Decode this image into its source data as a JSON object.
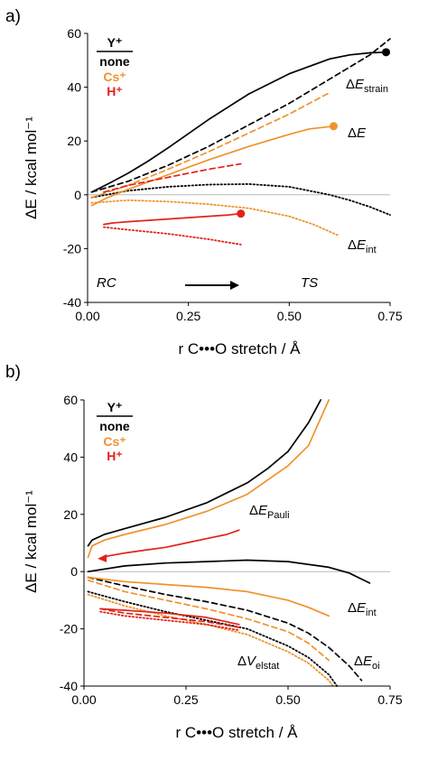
{
  "colors": {
    "none": "#000000",
    "cs": "#f0922b",
    "h": "#e2231a",
    "zero": "#bbbbbb"
  },
  "legend": {
    "title": "Y⁺",
    "items": [
      {
        "label": "none",
        "color": "#000000"
      },
      {
        "label": "Cs⁺",
        "color": "#f0922b"
      },
      {
        "label": "H⁺",
        "color": "#e2231a"
      }
    ]
  },
  "chart_data": [
    {
      "panel": "a)",
      "type": "line",
      "xlabel": "r C•••O stretch / Å",
      "ylabel": "ΔE / kcal mol⁻¹",
      "xlim": [
        0,
        0.75
      ],
      "ylim": [
        -40,
        60
      ],
      "xticks": [
        "0.00",
        "0.25",
        "0.50",
        "0.75"
      ],
      "yticks": [
        "60",
        "40",
        "20",
        "0",
        "-20",
        "-40"
      ],
      "annotations": {
        "strain": {
          "delta": "Δ",
          "E": "E",
          "sub": "strain"
        },
        "total": {
          "delta": "Δ",
          "E": "E",
          "sub": ""
        },
        "int": {
          "delta": "Δ",
          "E": "E",
          "sub": "int"
        },
        "rc": "RC",
        "ts": "TS"
      },
      "series": [
        {
          "ion": "none",
          "term": "ΔE",
          "dash": "solid",
          "endpoint": true,
          "x": [
            0.01,
            0.05,
            0.1,
            0.15,
            0.2,
            0.3,
            0.4,
            0.5,
            0.6,
            0.65,
            0.7,
            0.74
          ],
          "y": [
            1,
            4,
            8,
            12.5,
            17.5,
            28,
            37.5,
            45,
            50.5,
            52,
            52.8,
            53
          ]
        },
        {
          "ion": "none",
          "term": "ΔE_strain",
          "dash": "dashed",
          "x": [
            0.01,
            0.1,
            0.2,
            0.3,
            0.4,
            0.5,
            0.6,
            0.7,
            0.75
          ],
          "y": [
            1,
            5,
            11,
            18,
            26,
            34,
            43,
            52,
            58
          ]
        },
        {
          "ion": "none",
          "term": "ΔE_int",
          "dash": "dotted",
          "x": [
            0.01,
            0.1,
            0.2,
            0.3,
            0.4,
            0.5,
            0.6,
            0.65,
            0.7,
            0.75
          ],
          "y": [
            -1,
            1.5,
            3,
            3.8,
            4,
            3,
            0,
            -2,
            -4.5,
            -7.5
          ]
        },
        {
          "ion": "Cs⁺",
          "term": "ΔE",
          "dash": "solid",
          "endpoint": true,
          "x": [
            0.01,
            0.05,
            0.1,
            0.2,
            0.3,
            0.4,
            0.5,
            0.55,
            0.61
          ],
          "y": [
            -4,
            -1,
            2,
            7.5,
            13,
            18,
            22.5,
            24.5,
            25.5
          ]
        },
        {
          "ion": "Cs⁺",
          "term": "ΔE_strain",
          "dash": "dashed",
          "x": [
            0.01,
            0.1,
            0.2,
            0.3,
            0.4,
            0.5,
            0.6
          ],
          "y": [
            -1,
            3.5,
            9.5,
            16,
            23,
            30,
            38
          ]
        },
        {
          "ion": "Cs⁺",
          "term": "ΔE_int",
          "dash": "dotted",
          "x": [
            0.01,
            0.1,
            0.2,
            0.3,
            0.4,
            0.5,
            0.56,
            0.62
          ],
          "y": [
            -3,
            -2,
            -2.5,
            -3.5,
            -5,
            -8,
            -11,
            -15
          ]
        },
        {
          "ion": "H⁺",
          "term": "ΔE",
          "dash": "solid",
          "endpoint": true,
          "x": [
            0.04,
            0.06,
            0.1,
            0.15,
            0.2,
            0.25,
            0.3,
            0.35,
            0.38
          ],
          "y": [
            -11,
            -10.5,
            -10,
            -9.5,
            -9,
            -8.5,
            -8,
            -7.5,
            -7
          ]
        },
        {
          "ion": "H⁺",
          "term": "ΔE_strain",
          "dash": "dashed",
          "x": [
            0.04,
            0.1,
            0.2,
            0.3,
            0.38
          ],
          "y": [
            1,
            3.5,
            6.5,
            9.5,
            11.5
          ]
        },
        {
          "ion": "H⁺",
          "term": "ΔE_int",
          "dash": "dotted",
          "x": [
            0.04,
            0.1,
            0.2,
            0.3,
            0.38
          ],
          "y": [
            -12,
            -13,
            -14.5,
            -16.5,
            -18.5
          ]
        }
      ]
    },
    {
      "panel": "b)",
      "type": "line",
      "xlabel": "r C•••O stretch / Å",
      "ylabel": "ΔE / kcal mol⁻¹",
      "xlim": [
        0,
        0.75
      ],
      "ylim": [
        -40,
        60
      ],
      "xticks": [
        "0.00",
        "0.25",
        "0.50",
        "0.75"
      ],
      "yticks": [
        "60",
        "40",
        "20",
        "0",
        "-20",
        "-40"
      ],
      "annotations": {
        "pauli": {
          "delta": "Δ",
          "E": "E",
          "sub": "Pauli"
        },
        "int": {
          "delta": "Δ",
          "E": "E",
          "sub": "int"
        },
        "elstat": {
          "delta": "Δ",
          "E": "V",
          "sub": "elstat"
        },
        "oi": {
          "delta": "Δ",
          "E": "E",
          "sub": "oi"
        }
      },
      "series": [
        {
          "ion": "none",
          "term": "ΔE_Pauli",
          "dash": "solid",
          "x": [
            0.01,
            0.02,
            0.05,
            0.1,
            0.2,
            0.3,
            0.4,
            0.45,
            0.5,
            0.55,
            0.58
          ],
          "y": [
            9,
            11,
            13,
            15,
            19,
            24,
            31,
            36,
            42,
            52,
            60
          ]
        },
        {
          "ion": "none",
          "term": "ΔE_int",
          "dash": "solid",
          "x": [
            0.01,
            0.1,
            0.2,
            0.3,
            0.4,
            0.5,
            0.6,
            0.65,
            0.7
          ],
          "y": [
            0,
            2,
            3,
            3.5,
            4,
            3.5,
            1.5,
            -0.5,
            -4
          ]
        },
        {
          "ion": "none",
          "term": "ΔE_oi",
          "dash": "dashed",
          "x": [
            0.01,
            0.1,
            0.2,
            0.3,
            0.4,
            0.5,
            0.55,
            0.6,
            0.65,
            0.68
          ],
          "y": [
            -2,
            -5,
            -8,
            -10.5,
            -13.5,
            -18,
            -21.5,
            -26.5,
            -33,
            -38
          ]
        },
        {
          "ion": "none",
          "term": "ΔV_elstat",
          "dash": "dotted",
          "x": [
            0.01,
            0.1,
            0.2,
            0.3,
            0.4,
            0.5,
            0.55,
            0.6,
            0.62
          ],
          "y": [
            -7,
            -10.5,
            -14,
            -17,
            -20,
            -26,
            -30,
            -36,
            -40
          ]
        },
        {
          "ion": "Cs⁺",
          "term": "ΔE_Pauli",
          "dash": "solid",
          "x": [
            0.01,
            0.02,
            0.05,
            0.1,
            0.2,
            0.3,
            0.4,
            0.5,
            0.55,
            0.6
          ],
          "y": [
            5,
            9,
            11,
            13,
            16.5,
            21,
            27,
            37,
            44,
            60
          ]
        },
        {
          "ion": "Cs⁺",
          "term": "ΔE_int",
          "dash": "solid",
          "x": [
            0.01,
            0.1,
            0.2,
            0.3,
            0.4,
            0.5,
            0.55,
            0.6
          ],
          "y": [
            -2,
            -3.5,
            -4.5,
            -5.5,
            -7,
            -10,
            -12.5,
            -15.5
          ]
        },
        {
          "ion": "Cs⁺",
          "term": "ΔE_oi",
          "dash": "dashed",
          "x": [
            0.01,
            0.1,
            0.2,
            0.3,
            0.4,
            0.5,
            0.55,
            0.6
          ],
          "y": [
            -3,
            -7,
            -10,
            -13,
            -16.5,
            -21,
            -25,
            -31
          ]
        },
        {
          "ion": "Cs⁺",
          "term": "ΔV_elstat",
          "dash": "dotted",
          "x": [
            0.01,
            0.1,
            0.2,
            0.3,
            0.4,
            0.5,
            0.55,
            0.6,
            0.61
          ],
          "y": [
            -8,
            -12,
            -15.5,
            -18.5,
            -22,
            -28,
            -32,
            -38,
            -40
          ]
        },
        {
          "ion": "H⁺",
          "term": "ΔE_Pauli",
          "dash": "solid",
          "arrow": true,
          "x": [
            0.04,
            0.06,
            0.1,
            0.15,
            0.2,
            0.25,
            0.3,
            0.35,
            0.38
          ],
          "y": [
            4.5,
            5.5,
            6.5,
            7.5,
            8.5,
            10,
            11.5,
            13,
            14.5
          ]
        },
        {
          "ion": "H⁺",
          "term": "ΔE_int",
          "dash": "solid",
          "x": [
            0.04,
            0.1,
            0.2,
            0.3,
            0.38
          ],
          "y": [
            -13,
            -13.5,
            -14.5,
            -16,
            -18.5
          ]
        },
        {
          "ion": "H⁺",
          "term": "ΔE_oi",
          "dash": "dashed",
          "x": [
            0.04,
            0.1,
            0.2,
            0.3,
            0.38
          ],
          "y": [
            -13,
            -14.5,
            -16,
            -17.5,
            -19.5
          ]
        },
        {
          "ion": "H⁺",
          "term": "ΔV_elstat",
          "dash": "dotted",
          "x": [
            0.04,
            0.1,
            0.2,
            0.3,
            0.38
          ],
          "y": [
            -14,
            -15.5,
            -17,
            -18.5,
            -20.5
          ]
        }
      ]
    }
  ]
}
